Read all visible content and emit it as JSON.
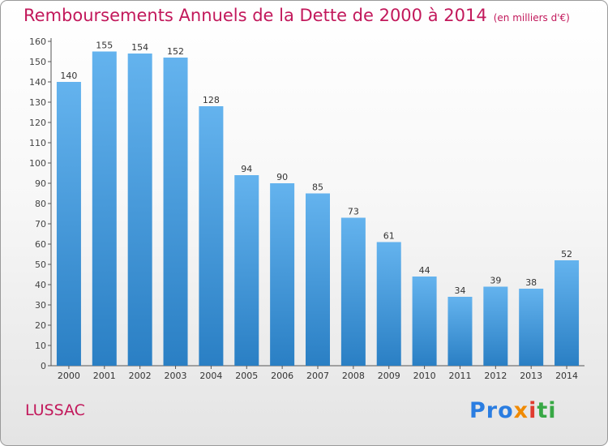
{
  "title": "Remboursements Annuels de la Dette de 2000 à 2014",
  "title_unit": "(en milliers d'€)",
  "commune": "LUSSAC",
  "logo": {
    "part1": "Pro",
    "part2": "x",
    "part3": "i",
    "part4": "ti"
  },
  "colors": {
    "bar_light": "#64b3ee",
    "bar_dark": "#2a7fc4",
    "title": "#c2185b"
  },
  "chart_data": {
    "type": "bar",
    "title": "Remboursements Annuels de la Dette de 2000 à 2014",
    "xlabel": "",
    "ylabel": "",
    "categories": [
      "2000",
      "2001",
      "2002",
      "2003",
      "2004",
      "2005",
      "2006",
      "2007",
      "2008",
      "2009",
      "2010",
      "2011",
      "2012",
      "2013",
      "2014"
    ],
    "values": [
      140,
      155,
      154,
      152,
      128,
      94,
      90,
      85,
      73,
      61,
      44,
      34,
      39,
      38,
      52
    ],
    "ylim": [
      0,
      160
    ],
    "yticks": [
      0,
      10,
      20,
      30,
      40,
      50,
      60,
      70,
      80,
      90,
      100,
      110,
      120,
      130,
      140,
      150,
      160
    ],
    "grid": false,
    "legend": "none"
  }
}
